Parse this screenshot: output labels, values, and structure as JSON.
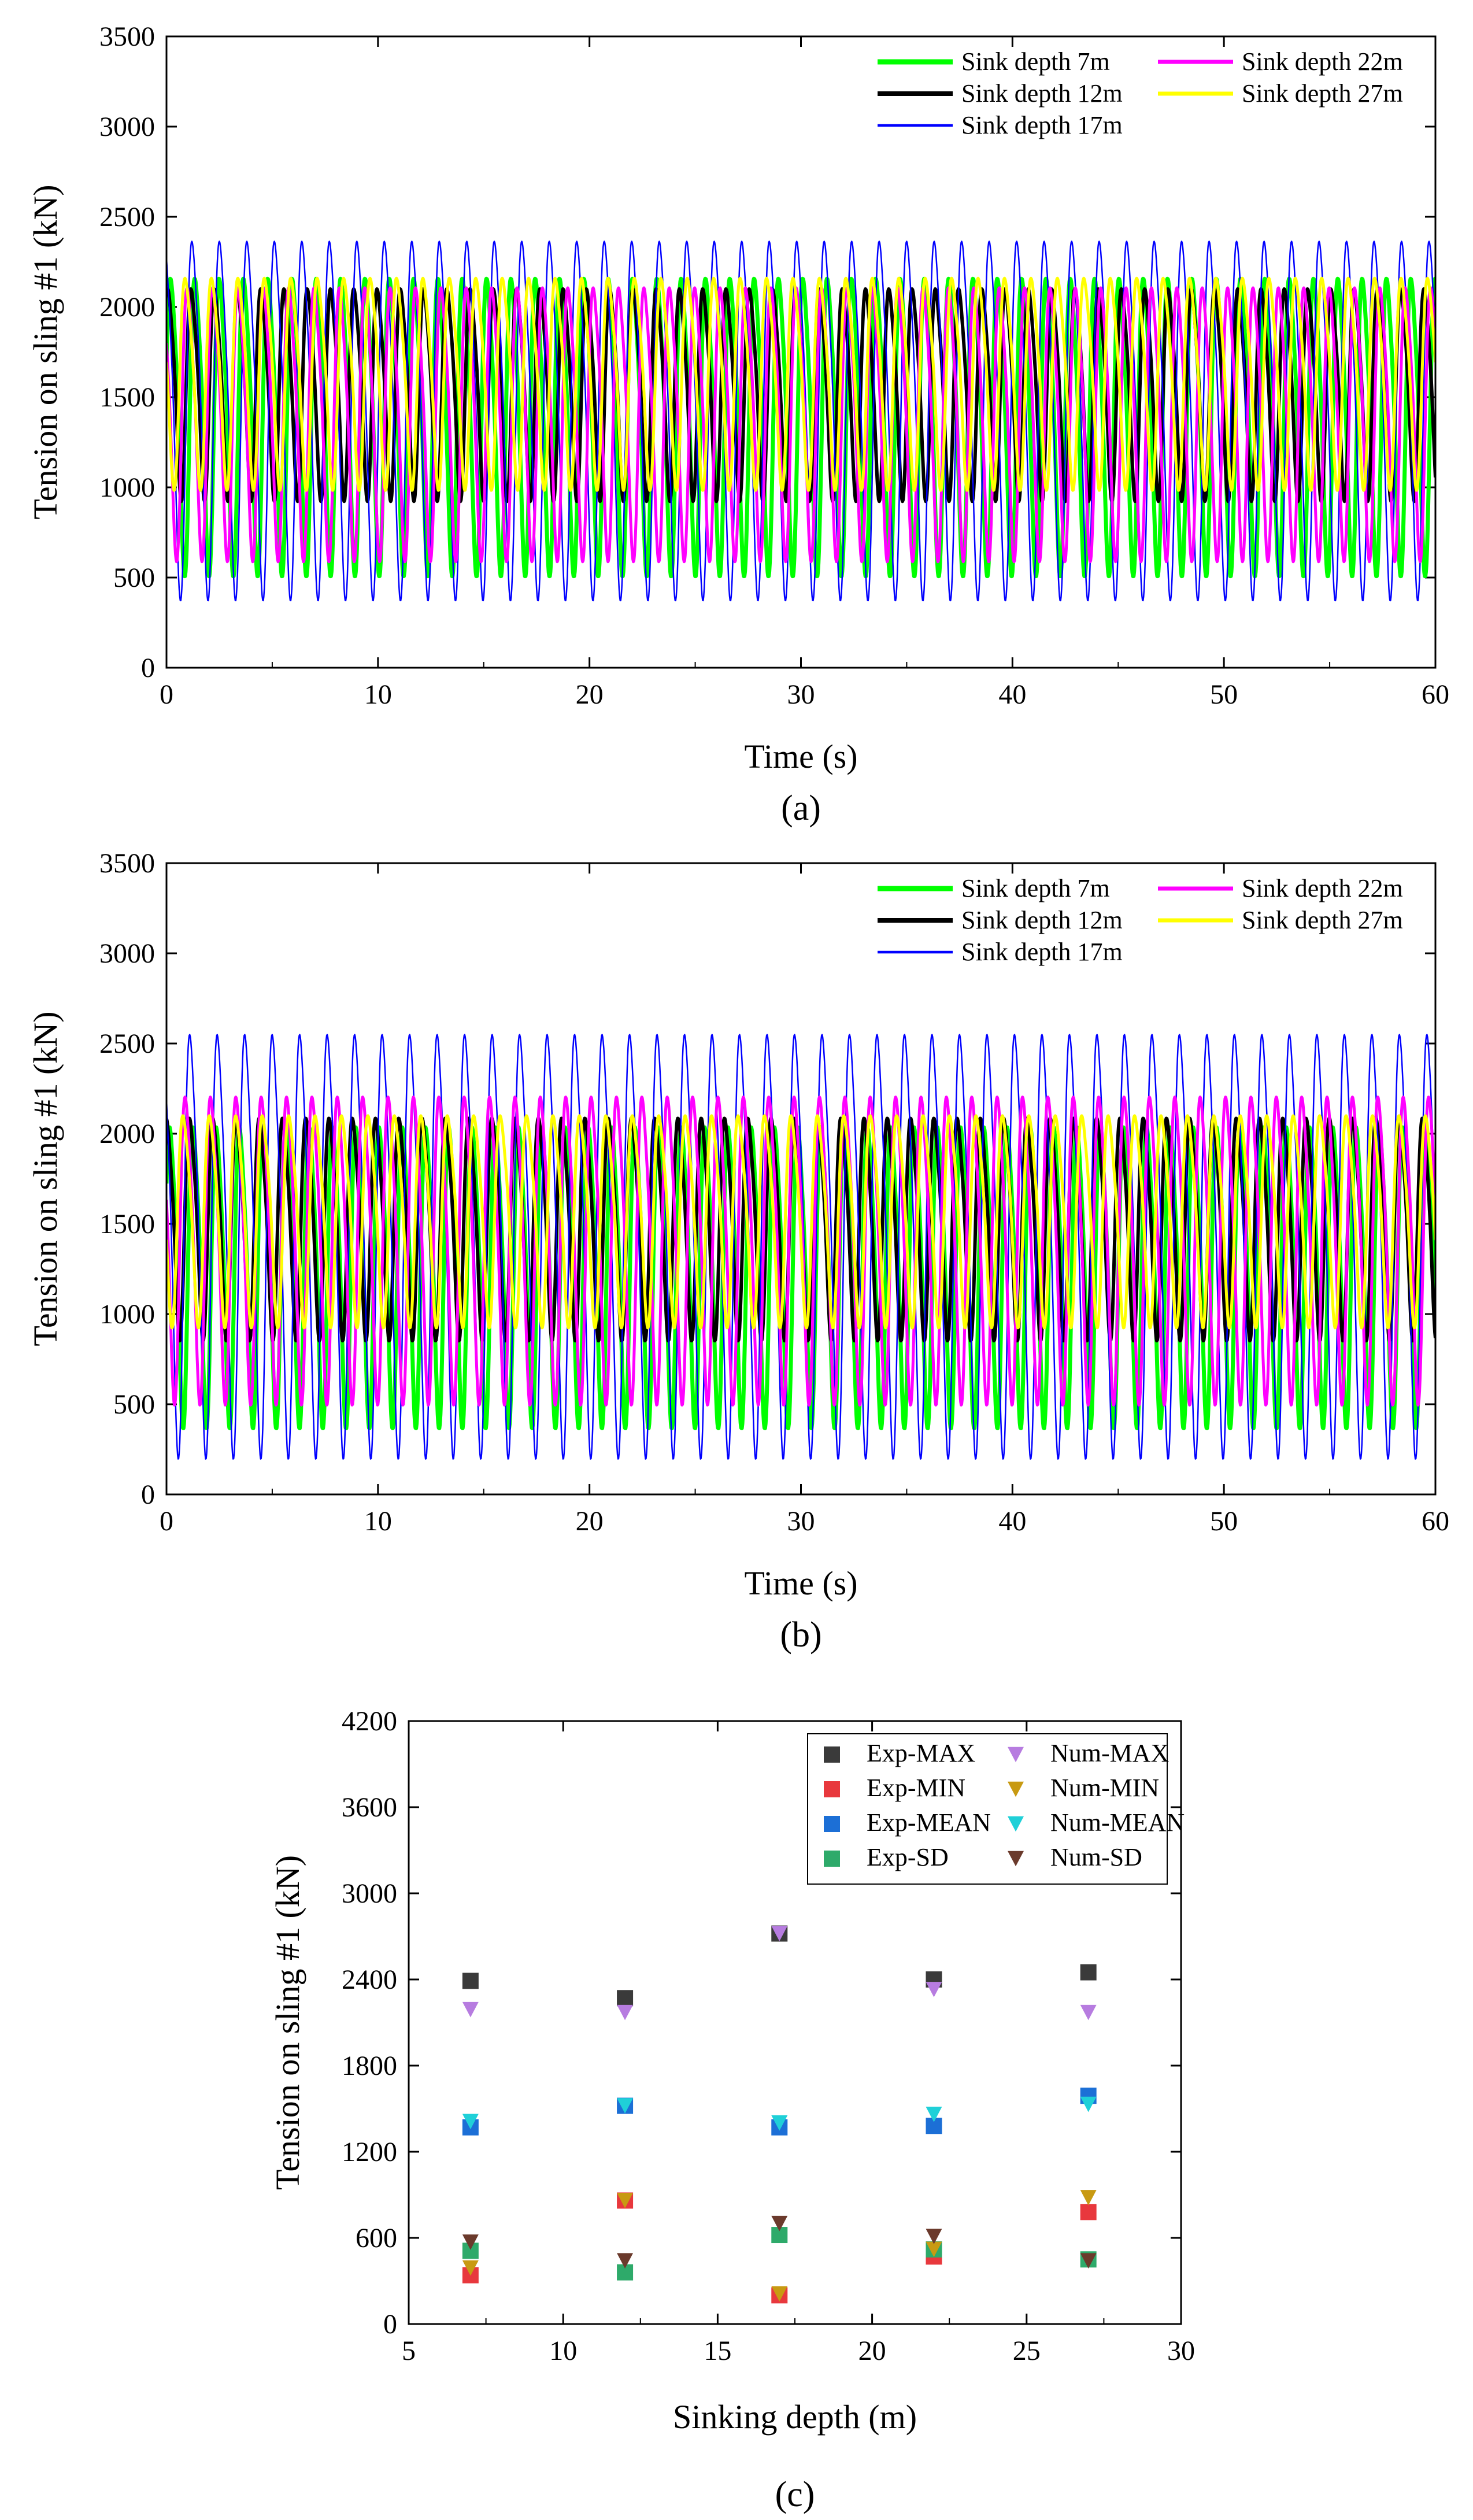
{
  "chart_data": [
    {
      "id": "a",
      "type": "line",
      "panel_label": "(a)",
      "xlabel": "Time (s)",
      "ylabel": "Tension on sling #1 (kN)",
      "xlim": [
        0,
        60
      ],
      "ylim": [
        0,
        3500
      ],
      "xticks": [
        0,
        10,
        20,
        30,
        40,
        50,
        60
      ],
      "yticks": [
        0,
        500,
        1000,
        1500,
        2000,
        2500,
        3000,
        3500
      ],
      "legend_position": "top-right",
      "series": [
        {
          "name": "Sink depth 7m",
          "color": "#00ff00",
          "period": 1.15,
          "mean": 1400,
          "amplitude": 870,
          "phase": 0.2
        },
        {
          "name": "Sink depth 12m",
          "color": "#000000",
          "period": 1.1,
          "mean": 1560,
          "amplitude": 620,
          "phase": 0.9
        },
        {
          "name": "Sink depth 17m",
          "color": "#0000ff",
          "period": 1.3,
          "mean": 1450,
          "amplitude": 1050,
          "phase": 1.7
        },
        {
          "name": "Sink depth 22m",
          "color": "#ff00ff",
          "period": 1.2,
          "mean": 1410,
          "amplitude": 800,
          "phase": 2.4
        },
        {
          "name": "Sink depth 27m",
          "color": "#ffff00",
          "period": 1.25,
          "mean": 1620,
          "amplitude": 620,
          "phase": 3.1
        }
      ]
    },
    {
      "id": "b",
      "type": "line",
      "panel_label": "(b)",
      "xlabel": "Time (s)",
      "ylabel": "Tension on sling #1 (kN)",
      "xlim": [
        0,
        60
      ],
      "ylim": [
        0,
        3500
      ],
      "xticks": [
        0,
        10,
        20,
        30,
        40,
        50,
        60
      ],
      "yticks": [
        0,
        500,
        1000,
        1500,
        2000,
        2500,
        3000,
        3500
      ],
      "legend_position": "top-right",
      "series": [
        {
          "name": "Sink depth 7m",
          "color": "#00ff00",
          "period": 1.1,
          "mean": 1270,
          "amplitude": 880,
          "phase": 0.4
        },
        {
          "name": "Sink depth 12m",
          "color": "#000000",
          "period": 1.1,
          "mean": 1520,
          "amplitude": 650,
          "phase": 1.3
        },
        {
          "name": "Sink depth 17m",
          "color": "#0000ff",
          "period": 1.3,
          "mean": 1470,
          "amplitude": 1240,
          "phase": 2.2
        },
        {
          "name": "Sink depth 22m",
          "color": "#ff00ff",
          "period": 1.2,
          "mean": 1420,
          "amplitude": 900,
          "phase": 2.9
        },
        {
          "name": "Sink depth 27m",
          "color": "#ffff00",
          "period": 1.25,
          "mean": 1560,
          "amplitude": 620,
          "phase": 3.6
        }
      ]
    },
    {
      "id": "c",
      "type": "scatter",
      "panel_label": "(c)",
      "xlabel": "Sinking depth (m)",
      "ylabel": "Tension on sling #1 (kN)",
      "xlim": [
        5,
        30
      ],
      "ylim": [
        0,
        4200
      ],
      "xticks": [
        5,
        10,
        15,
        20,
        25,
        30
      ],
      "yticks": [
        0,
        600,
        1200,
        1800,
        2400,
        3000,
        3600,
        4200
      ],
      "legend_position": "top-right",
      "x": [
        7,
        12,
        17,
        22,
        27
      ],
      "series": [
        {
          "name": "Exp-MAX",
          "marker": "square",
          "color": "#3a3a3a",
          "values": [
            2390,
            2270,
            2720,
            2400,
            2450
          ]
        },
        {
          "name": "Exp-MIN",
          "marker": "square",
          "color": "#e8383d",
          "values": [
            340,
            860,
            200,
            470,
            780
          ]
        },
        {
          "name": "Exp-MEAN",
          "marker": "square",
          "color": "#1c6fd6",
          "values": [
            1370,
            1520,
            1370,
            1380,
            1590
          ]
        },
        {
          "name": "Exp-SD",
          "marker": "square",
          "color": "#2eaa6a",
          "values": [
            510,
            360,
            620,
            520,
            450
          ]
        },
        {
          "name": "Num-MAX",
          "marker": "triangle-down",
          "color": "#b77ce0",
          "values": [
            2190,
            2170,
            2720,
            2330,
            2170
          ]
        },
        {
          "name": "Num-MIN",
          "marker": "triangle-down",
          "color": "#c89a12",
          "values": [
            390,
            860,
            210,
            520,
            880
          ]
        },
        {
          "name": "Num-MEAN",
          "marker": "triangle-down",
          "color": "#1fd0d8",
          "values": [
            1410,
            1520,
            1400,
            1460,
            1530
          ]
        },
        {
          "name": "Num-SD",
          "marker": "triangle-down",
          "color": "#6b3a2c",
          "values": [
            570,
            440,
            700,
            610,
            440
          ]
        }
      ]
    }
  ]
}
